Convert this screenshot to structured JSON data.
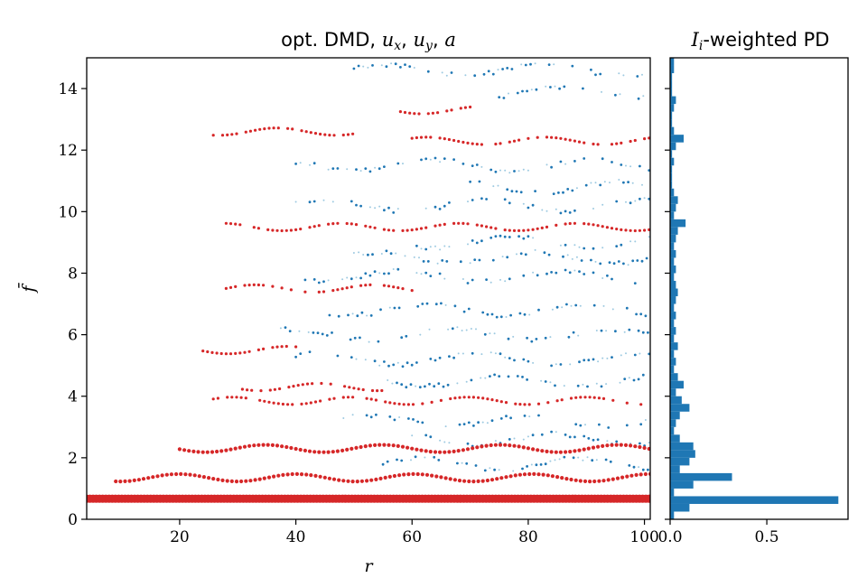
{
  "chart_data": [
    {
      "type": "scatter",
      "title": "opt. DMD, u_x, u_y, a",
      "title_parts": {
        "prefix": "opt. DMD, ",
        "u1_base": "u",
        "u1_sub": "x",
        "sep1": ", ",
        "u2_base": "u",
        "u2_sub": "y",
        "sep2": ", ",
        "a": "a"
      },
      "xlabel": "r",
      "ylabel": "f̄",
      "xlim": [
        4,
        101
      ],
      "ylim": [
        0,
        15
      ],
      "xticks": [
        "20",
        "40",
        "60",
        "80",
        "100"
      ],
      "xtick_values": [
        20,
        40,
        60,
        80,
        100
      ],
      "yticks": [
        "0",
        "2",
        "4",
        "6",
        "8",
        "10",
        "12",
        "14"
      ],
      "ytick_values": [
        0,
        2,
        4,
        6,
        8,
        10,
        12,
        14
      ],
      "grid": false,
      "colors": {
        "highlighted": "#d62728",
        "other": "#1f77b4"
      },
      "series": [
        {
          "role": "highlighted",
          "tracks": [
            {
              "f": 0.67,
              "r": [
                4,
                101
              ],
              "size": "large"
            },
            {
              "f": 1.35,
              "r": [
                9,
                101
              ],
              "size": "medium"
            },
            {
              "f": 2.3,
              "r": [
                20,
                101
              ],
              "size": "medium"
            },
            {
              "f": 3.85,
              "r": [
                25,
                101
              ],
              "size": "small"
            },
            {
              "f": 4.3,
              "r": [
                30,
                55
              ],
              "size": "small"
            },
            {
              "f": 5.5,
              "r": [
                24,
                40
              ],
              "size": "small"
            },
            {
              "f": 7.5,
              "r": [
                28,
                60
              ],
              "size": "small"
            },
            {
              "f": 9.5,
              "r": [
                28,
                101
              ],
              "size": "small"
            },
            {
              "f": 12.3,
              "r": [
                60,
                101
              ],
              "size": "small"
            },
            {
              "f": 12.6,
              "r": [
                25,
                50
              ],
              "size": "small"
            },
            {
              "f": 13.3,
              "r": [
                58,
                70
              ],
              "size": "small"
            }
          ]
        },
        {
          "role": "other",
          "tracks": [
            {
              "f": 1.8,
              "r": [
                55,
                101
              ]
            },
            {
              "f": 2.6,
              "r": [
                60,
                101
              ]
            },
            {
              "f": 3.2,
              "r": [
                45,
                101
              ]
            },
            {
              "f": 4.5,
              "r": [
                55,
                101
              ]
            },
            {
              "f": 5.2,
              "r": [
                40,
                101
              ]
            },
            {
              "f": 6.0,
              "r": [
                35,
                101
              ]
            },
            {
              "f": 6.8,
              "r": [
                45,
                101
              ]
            },
            {
              "f": 7.9,
              "r": [
                40,
                101
              ]
            },
            {
              "f": 8.5,
              "r": [
                50,
                101
              ]
            },
            {
              "f": 9.0,
              "r": [
                60,
                101
              ]
            },
            {
              "f": 10.2,
              "r": [
                40,
                101
              ]
            },
            {
              "f": 10.8,
              "r": [
                70,
                101
              ]
            },
            {
              "f": 11.5,
              "r": [
                40,
                101
              ]
            },
            {
              "f": 13.9,
              "r": [
                75,
                101
              ]
            },
            {
              "f": 14.6,
              "r": [
                50,
                101
              ]
            }
          ]
        }
      ]
    },
    {
      "type": "bar",
      "orientation": "horizontal",
      "title": "I_i-weighted PD",
      "title_parts": {
        "base": "I",
        "sub": "i",
        "rest": "-weighted PD"
      },
      "xlim": [
        0,
        0.92
      ],
      "xticks": [
        "0.0",
        "0.5"
      ],
      "xtick_values": [
        0,
        0.5
      ],
      "ylim": [
        0,
        15
      ],
      "bin_width": 0.25,
      "color": "#1f77b4",
      "bin_start": [
        0.0,
        0.25,
        0.5,
        0.75,
        1.0,
        1.25,
        1.5,
        1.75,
        2.0,
        2.25,
        2.5,
        2.75,
        3.0,
        3.25,
        3.5,
        3.75,
        4.0,
        4.25,
        4.5,
        4.75,
        5.0,
        5.25,
        5.5,
        5.75,
        6.0,
        6.25,
        6.5,
        6.75,
        7.0,
        7.25,
        7.5,
        7.75,
        8.0,
        8.25,
        8.5,
        8.75,
        9.0,
        9.25,
        9.5,
        9.75,
        10.0,
        10.25,
        10.5,
        10.75,
        11.0,
        11.25,
        11.5,
        11.75,
        12.0,
        12.25,
        12.5,
        12.75,
        13.0,
        13.25,
        13.5,
        13.75,
        14.0,
        14.25,
        14.5,
        14.75
      ],
      "values": [
        0.02,
        0.1,
        0.87,
        0.02,
        0.12,
        0.32,
        0.05,
        0.1,
        0.13,
        0.12,
        0.05,
        0.02,
        0.03,
        0.05,
        0.1,
        0.06,
        0.03,
        0.07,
        0.04,
        0.02,
        0.03,
        0.02,
        0.04,
        0.02,
        0.03,
        0.02,
        0.03,
        0.02,
        0.03,
        0.04,
        0.03,
        0.02,
        0.03,
        0.02,
        0.03,
        0.02,
        0.03,
        0.04,
        0.08,
        0.02,
        0.03,
        0.04,
        0.02,
        0.01,
        0.01,
        0.01,
        0.02,
        0.01,
        0.03,
        0.07,
        0.02,
        0.01,
        0.01,
        0.02,
        0.03,
        0.01,
        0.01,
        0.01,
        0.02,
        0.02
      ]
    }
  ]
}
